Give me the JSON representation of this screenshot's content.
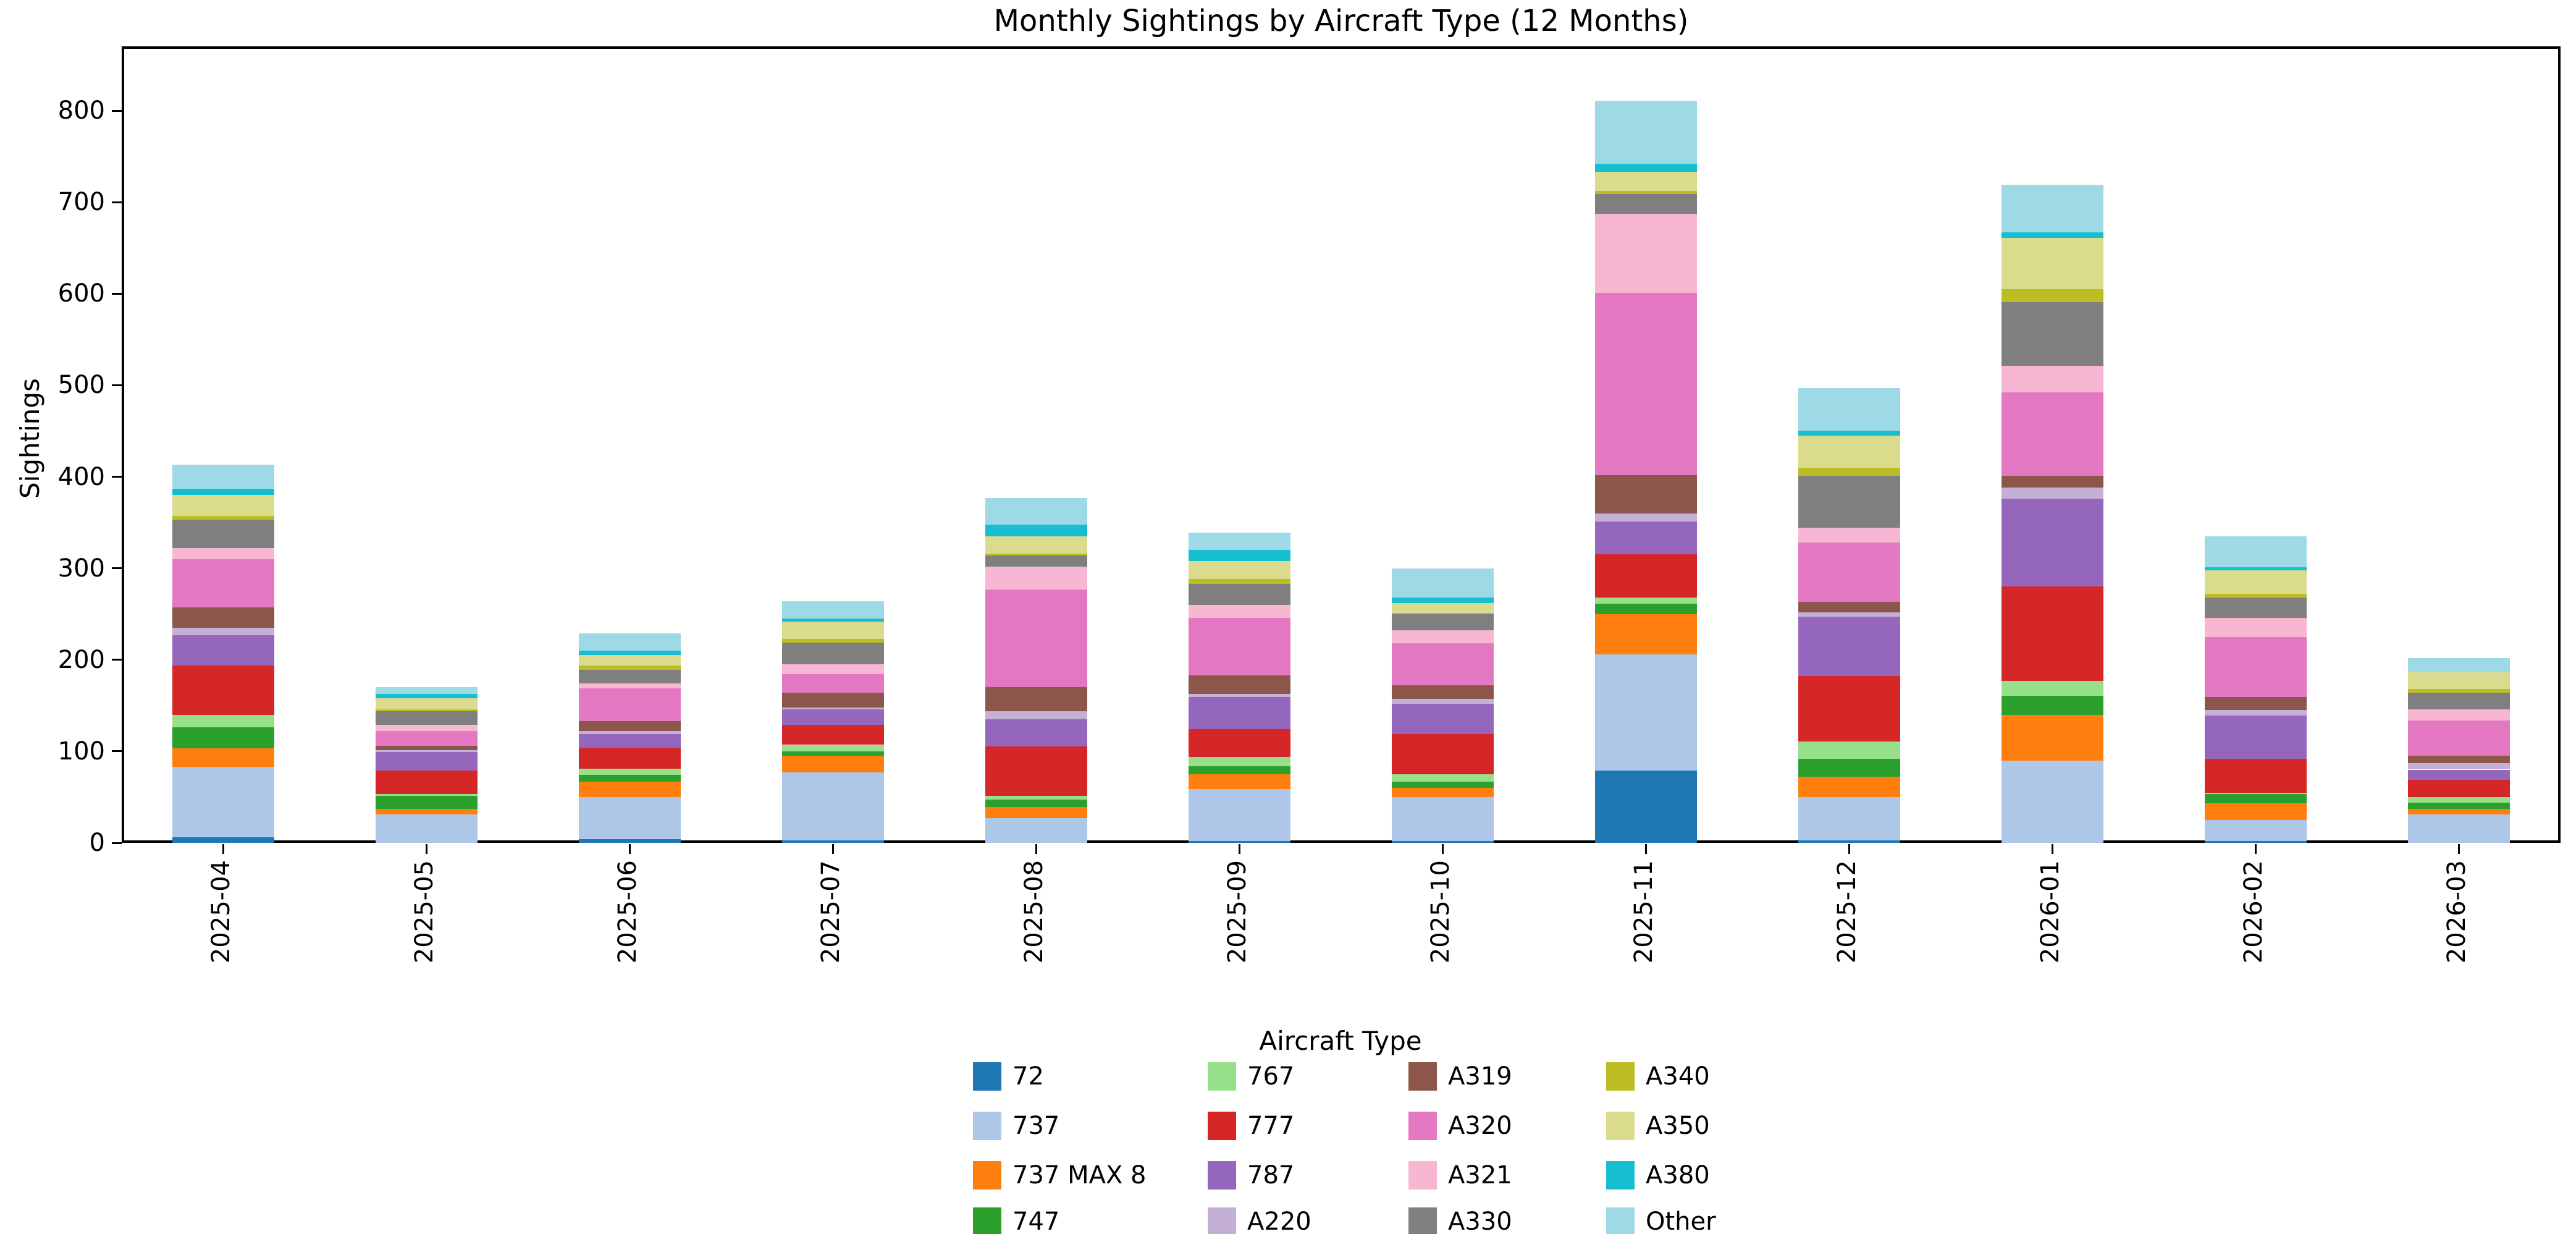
{
  "chart_data": {
    "type": "bar",
    "stacked": true,
    "title": "Monthly Sightings by Aircraft Type (12 Months)",
    "xlabel": "",
    "ylabel": "Sightings",
    "legend_title": "Aircraft Type",
    "legend_position": "bottom",
    "grid": false,
    "ylim": [
      0,
      867
    ],
    "yticks": [
      0,
      100,
      200,
      300,
      400,
      500,
      600,
      700,
      800
    ],
    "categories": [
      "2025-04",
      "2025-05",
      "2025-06",
      "2025-07",
      "2025-08",
      "2025-09",
      "2025-10",
      "2025-11",
      "2025-12",
      "2026-01",
      "2026-02",
      "2026-03"
    ],
    "series": [
      {
        "name": "72",
        "color": "#1f77b4",
        "values": [
          6,
          0,
          4,
          3,
          0,
          2,
          2,
          79,
          3,
          0,
          2,
          0
        ]
      },
      {
        "name": "737",
        "color": "#aec7e8",
        "values": [
          77,
          31,
          46,
          74,
          27,
          57,
          48,
          127,
          47,
          90,
          23,
          31
        ]
      },
      {
        "name": "737 MAX 8",
        "color": "#ff7f0e",
        "values": [
          20,
          6,
          17,
          18,
          12,
          16,
          10,
          44,
          22,
          50,
          18,
          6
        ]
      },
      {
        "name": "747",
        "color": "#2ca02c",
        "values": [
          23,
          14,
          7,
          5,
          8,
          9,
          7,
          11,
          20,
          21,
          10,
          7
        ]
      },
      {
        "name": "767",
        "color": "#98df8a",
        "values": [
          14,
          2,
          7,
          7,
          4,
          10,
          8,
          7,
          19,
          16,
          2,
          6
        ]
      },
      {
        "name": "777",
        "color": "#d62728",
        "values": [
          54,
          26,
          23,
          22,
          54,
          30,
          44,
          47,
          71,
          103,
          37,
          19
        ]
      },
      {
        "name": "787",
        "color": "#9467bd",
        "values": [
          33,
          20,
          15,
          17,
          30,
          35,
          33,
          36,
          65,
          96,
          47,
          11
        ]
      },
      {
        "name": "A220",
        "color": "#c5b0d5",
        "values": [
          8,
          2,
          3,
          2,
          9,
          4,
          5,
          9,
          5,
          12,
          6,
          7
        ]
      },
      {
        "name": "A319",
        "color": "#8c564b",
        "values": [
          22,
          5,
          11,
          16,
          26,
          20,
          15,
          42,
          11,
          13,
          14,
          8
        ]
      },
      {
        "name": "A320",
        "color": "#e377c2",
        "values": [
          53,
          16,
          36,
          20,
          107,
          63,
          46,
          199,
          65,
          91,
          66,
          39
        ]
      },
      {
        "name": "A321",
        "color": "#f7b6d2",
        "values": [
          12,
          7,
          5,
          11,
          25,
          14,
          14,
          86,
          16,
          29,
          21,
          12
        ]
      },
      {
        "name": "A330",
        "color": "#7f7f7f",
        "values": [
          31,
          15,
          15,
          24,
          12,
          23,
          18,
          22,
          57,
          70,
          22,
          18
        ]
      },
      {
        "name": "A340",
        "color": "#bcbd22",
        "values": [
          4,
          2,
          5,
          4,
          2,
          5,
          1,
          3,
          9,
          14,
          4,
          4
        ]
      },
      {
        "name": "A350",
        "color": "#dbdb8d",
        "values": [
          23,
          12,
          11,
          19,
          19,
          20,
          11,
          21,
          35,
          56,
          26,
          18
        ]
      },
      {
        "name": "A380",
        "color": "#17becf",
        "values": [
          7,
          5,
          5,
          3,
          13,
          12,
          6,
          9,
          5,
          6,
          3,
          0
        ]
      },
      {
        "name": "Other",
        "color": "#9edae5",
        "values": [
          26,
          7,
          19,
          19,
          29,
          19,
          32,
          69,
          47,
          52,
          34,
          16
        ]
      }
    ]
  }
}
